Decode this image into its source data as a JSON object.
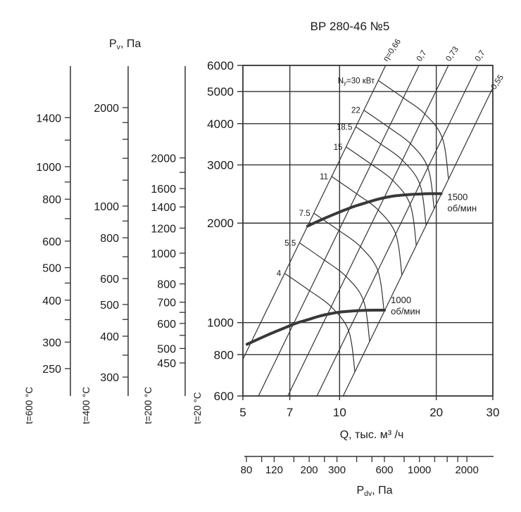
{
  "chart_data": {
    "type": "line",
    "title": "ВР 280-46 №5",
    "x_axis": {
      "title": "Q, тыс. м³ /ч",
      "scale": "log",
      "range": [
        5,
        30
      ],
      "ticks": [
        5,
        7,
        10,
        20,
        30
      ]
    },
    "y_axis": {
      "title_parts": [
        "P",
        "v",
        ", Па"
      ],
      "scale": "log",
      "range": [
        600,
        6000
      ],
      "ticks": [
        600,
        800,
        1000,
        2000,
        3000,
        4000,
        5000,
        6000
      ],
      "temperature_label": "t=20 °C"
    },
    "temperature_scales": [
      {
        "temperature_label": "t=600 °C",
        "ticks": [
          1400,
          1200,
          1000,
          900,
          800,
          700,
          600,
          500,
          450,
          400,
          350,
          300,
          250
        ],
        "labeled_ticks": [
          1400,
          1000,
          800,
          600,
          500,
          400,
          300,
          250
        ]
      },
      {
        "temperature_label": "t=400 °C",
        "ticks": [
          2000,
          1800,
          1600,
          1400,
          1200,
          1000,
          900,
          800,
          700,
          600,
          500,
          450,
          400,
          350,
          300
        ],
        "labeled_ticks": [
          2000,
          1000,
          800,
          600,
          500,
          400,
          300
        ]
      },
      {
        "temperature_label": "t=200 °C",
        "ticks": [
          2000,
          1800,
          1600,
          1400,
          1200,
          1000,
          900,
          800,
          700,
          650,
          600,
          550,
          500,
          450
        ],
        "labeled_ticks": [
          2000,
          1600,
          1400,
          1200,
          1000,
          800,
          700,
          600,
          500,
          450
        ]
      }
    ],
    "dynamic_pressure_axis": {
      "title_parts": [
        "P",
        "dv",
        ", Па"
      ],
      "scale": "log",
      "ticks": [
        80,
        100,
        120,
        160,
        200,
        250,
        300,
        400,
        500,
        600,
        800,
        1000,
        1250,
        1500,
        1750,
        2000
      ],
      "labeled_ticks": [
        80,
        120,
        200,
        300,
        600,
        1000,
        2000
      ]
    },
    "efficiency_lines": {
      "labels": [
        "η=0,66",
        "0,7",
        "0,73",
        "0,7",
        "0,55"
      ],
      "eta_values": [
        0.66,
        0.7,
        0.73,
        0.7,
        0.55
      ],
      "c_p_over_q2": [
        31,
        19.2,
        12.6,
        8.3,
        5.7
      ]
    },
    "power_curves": {
      "values_kw": [
        30,
        22,
        18.5,
        15,
        11,
        7.5,
        5.5,
        4
      ],
      "labels": [
        "Nу=30 кВт",
        "22",
        "18.5",
        "15",
        "11",
        "7.5",
        "5.5",
        "4"
      ]
    },
    "rpm_curves": [
      {
        "rpm": 1500,
        "label_lines": [
          "1500",
          "об/мин"
        ],
        "points_q_p": [
          [
            7.95,
            1960
          ],
          [
            9,
            2070
          ],
          [
            10,
            2160
          ],
          [
            11,
            2240
          ],
          [
            12,
            2300
          ],
          [
            13,
            2355
          ],
          [
            14,
            2395
          ],
          [
            15,
            2420
          ],
          [
            16,
            2435
          ],
          [
            17,
            2445
          ],
          [
            18,
            2452
          ],
          [
            19,
            2455
          ],
          [
            20.7,
            2455
          ]
        ]
      },
      {
        "rpm": 1000,
        "label_lines": [
          "1000",
          "об/мин"
        ],
        "points_q_p": [
          [
            5.15,
            860
          ],
          [
            6,
            920
          ],
          [
            6.67,
            960
          ],
          [
            7.33,
            996
          ],
          [
            8,
            1022
          ],
          [
            8.67,
            1047
          ],
          [
            9.33,
            1064
          ],
          [
            10,
            1076
          ],
          [
            10.67,
            1082
          ],
          [
            11.33,
            1087
          ],
          [
            12.3,
            1090
          ],
          [
            13.8,
            1091
          ]
        ]
      }
    ],
    "colors": {
      "line": "#333333",
      "thick_curve": "#383838",
      "text": "#1a1a1a",
      "background": "#ffffff"
    }
  }
}
